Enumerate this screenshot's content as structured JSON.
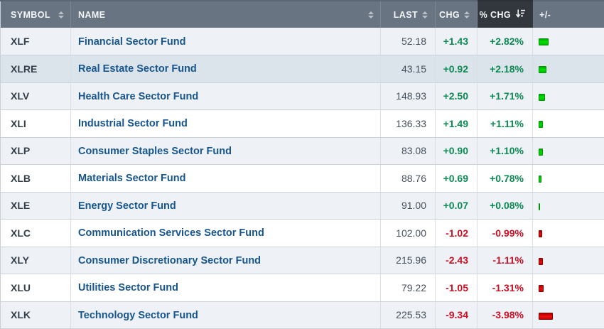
{
  "header": {
    "columns": [
      {
        "label": "SYMBOL",
        "sort": "inactive",
        "align": "sb"
      },
      {
        "label": "NAME",
        "sort": "inactive",
        "align": "sb"
      },
      {
        "label": "LAST",
        "sort": "inactive",
        "align": "right"
      },
      {
        "label": "CHG",
        "sort": "inactive",
        "align": "right"
      },
      {
        "label": "% CHG",
        "sort": "desc",
        "align": "right"
      },
      {
        "label": "+/-",
        "sort": "none",
        "align": "left"
      }
    ]
  },
  "rows": [
    {
      "symbol": "XLF",
      "name": "Financial Sector Fund",
      "last": "52.18",
      "chg": "+1.43",
      "pct_chg": "+2.82%",
      "pct_value": 2.82,
      "direction": "up",
      "highlighted": false
    },
    {
      "symbol": "XLRE",
      "name": "Real Estate Sector Fund",
      "last": "43.15",
      "chg": "+0.92",
      "pct_chg": "+2.18%",
      "pct_value": 2.18,
      "direction": "up",
      "highlighted": true
    },
    {
      "symbol": "XLV",
      "name": "Health Care Sector Fund",
      "last": "148.93",
      "chg": "+2.50",
      "pct_chg": "+1.71%",
      "pct_value": 1.71,
      "direction": "up",
      "highlighted": false
    },
    {
      "symbol": "XLI",
      "name": "Industrial Sector Fund",
      "last": "136.33",
      "chg": "+1.49",
      "pct_chg": "+1.11%",
      "pct_value": 1.11,
      "direction": "up",
      "highlighted": false
    },
    {
      "symbol": "XLP",
      "name": "Consumer Staples Sector Fund",
      "last": "83.08",
      "chg": "+0.90",
      "pct_chg": "+1.10%",
      "pct_value": 1.1,
      "direction": "up",
      "highlighted": false
    },
    {
      "symbol": "XLB",
      "name": "Materials Sector Fund",
      "last": "88.76",
      "chg": "+0.69",
      "pct_chg": "+0.78%",
      "pct_value": 0.78,
      "direction": "up",
      "highlighted": false
    },
    {
      "symbol": "XLE",
      "name": "Energy Sector Fund",
      "last": "91.00",
      "chg": "+0.07",
      "pct_chg": "+0.08%",
      "pct_value": 0.08,
      "direction": "up",
      "highlighted": false
    },
    {
      "symbol": "XLC",
      "name": "Communication Services Sector Fund",
      "last": "102.00",
      "chg": "-1.02",
      "pct_chg": "-0.99%",
      "pct_value": -0.99,
      "direction": "down",
      "highlighted": false
    },
    {
      "symbol": "XLY",
      "name": "Consumer Discretionary Sector Fund",
      "last": "215.96",
      "chg": "-2.43",
      "pct_chg": "-1.11%",
      "pct_value": -1.11,
      "direction": "down",
      "highlighted": false
    },
    {
      "symbol": "XLU",
      "name": "Utilities Sector Fund",
      "last": "79.22",
      "chg": "-1.05",
      "pct_chg": "-1.31%",
      "pct_value": -1.31,
      "direction": "down",
      "highlighted": false
    },
    {
      "symbol": "XLK",
      "name": "Technology Sector Fund",
      "last": "225.53",
      "chg": "-9.34",
      "pct_chg": "-3.98%",
      "pct_value": -3.98,
      "direction": "down",
      "highlighted": false
    }
  ],
  "colors": {
    "header_bg": "#697482",
    "header_active_bg": "#31373d",
    "row_alt": "#eef2f6",
    "row_highlight": "#dbe3eb",
    "name_link": "#16558f",
    "up_text": "#0d8a53",
    "down_text": "#cc0f24",
    "bar_up": "#00d000",
    "bar_down": "#e60000"
  }
}
